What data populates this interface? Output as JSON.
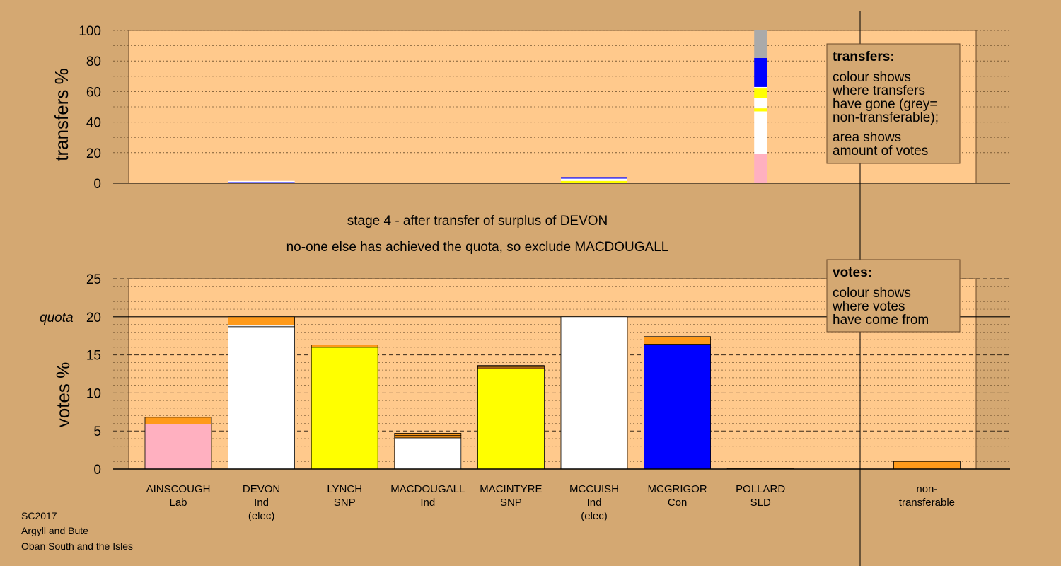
{
  "stage_line_1": "stage 4 - after transfer of surplus of DEVON",
  "stage_line_2": "no-one else has achieved the quota, so exclude MACDOUGALL",
  "footer": [
    "SC2017",
    "Argyll and Bute",
    "Oban South and the Isles"
  ],
  "transfers_legend": {
    "title": "transfers:",
    "text1": [
      "colour shows",
      "where transfers",
      "have gone (grey=",
      "non-transferable);"
    ],
    "text2": [
      "area shows",
      "amount of votes"
    ]
  },
  "votes_legend": {
    "title": "votes:",
    "text": [
      "colour shows",
      "where votes",
      "have come from"
    ]
  },
  "colors": {
    "background": "#d4a872",
    "plot_area": "#ffc98c",
    "Lab": "#ffb0c0",
    "Ind": "#ffffff",
    "SNP": "#ffff00",
    "Con": "#0000ff",
    "transfer": "#ff9a1a",
    "non_transferable": "#aaaaaa"
  },
  "chart_data": [
    {
      "type": "bar",
      "ylabel": "transfers %",
      "ylim": [
        0,
        100
      ],
      "yticks": [
        0,
        20,
        40,
        60,
        80,
        100
      ],
      "grid": true,
      "bars": [
        {
          "position": 1,
          "total": 1.5,
          "segments": [
            {
              "color": "#0000ff",
              "value": 0.7
            },
            {
              "color": "#ffffff",
              "value": 0.8
            }
          ]
        },
        {
          "position": 5,
          "total": 4,
          "segments": [
            {
              "color": "#ffff00",
              "value": 1.5
            },
            {
              "color": "#ffffff",
              "value": 1.5
            },
            {
              "color": "#0000ff",
              "value": 1.0
            }
          ]
        },
        {
          "position": 7,
          "total": 100,
          "narrow": true,
          "segments": [
            {
              "color": "#ffb0c0",
              "value": 19
            },
            {
              "color": "#ffffff",
              "value": 28
            },
            {
              "color": "#ffff00",
              "value": 2
            },
            {
              "color": "#ffffff",
              "value": 7
            },
            {
              "color": "#ffff00",
              "value": 6
            },
            {
              "color": "#ffffff",
              "value": 1
            },
            {
              "color": "#0000ff",
              "value": 19
            },
            {
              "color": "#aaaaaa",
              "value": 18
            }
          ]
        }
      ]
    },
    {
      "type": "bar",
      "ylabel": "votes %",
      "ylim": [
        0,
        25
      ],
      "yticks": [
        0,
        5,
        10,
        15,
        20,
        25
      ],
      "quota": 20,
      "quota_label": "quota",
      "grid": true,
      "categories": [
        {
          "name": "AINSCOUGH",
          "party": "Lab",
          "extra": ""
        },
        {
          "name": "DEVON",
          "party": "Ind",
          "extra": "(elec)"
        },
        {
          "name": "LYNCH",
          "party": "SNP",
          "extra": ""
        },
        {
          "name": "MACDOUGALL",
          "party": "Ind",
          "extra": ""
        },
        {
          "name": "MACINTYRE",
          "party": "SNP",
          "extra": ""
        },
        {
          "name": "MCCUISH",
          "party": "Ind",
          "extra": "(elec)"
        },
        {
          "name": "MCGRIGOR",
          "party": "Con",
          "extra": ""
        },
        {
          "name": "POLLARD",
          "party": "SLD",
          "extra": ""
        },
        {
          "name": "non-",
          "party": "transferable",
          "extra": ""
        }
      ],
      "bars": [
        {
          "position": 0,
          "segments": [
            {
              "color": "#ffb0c0",
              "value": 5.9
            },
            {
              "color": "#ff9a1a",
              "value": 0.9
            }
          ]
        },
        {
          "position": 1,
          "segments": [
            {
              "color": "#ffffff",
              "value": 18.7
            },
            {
              "color": "#ffffff",
              "value": 0.2
            },
            {
              "color": "#ff9a1a",
              "value": 1.1
            }
          ]
        },
        {
          "position": 2,
          "segments": [
            {
              "color": "#ffff00",
              "value": 16.0
            },
            {
              "color": "#ff9a1a",
              "value": 0.3
            }
          ]
        },
        {
          "position": 3,
          "segments": [
            {
              "color": "#ffffff",
              "value": 4.1
            },
            {
              "color": "#ff9a1a",
              "value": 0.3
            },
            {
              "color": "#ff9a1a",
              "value": 0.3
            }
          ]
        },
        {
          "position": 4,
          "segments": [
            {
              "color": "#ffff00",
              "value": 13.2
            },
            {
              "color": "#ff9a1a",
              "value": 0.2
            },
            {
              "color": "#ff9a1a",
              "value": 0.2
            }
          ]
        },
        {
          "position": 5,
          "segments": [
            {
              "color": "#ffffff",
              "value": 20.0
            }
          ]
        },
        {
          "position": 6,
          "segments": [
            {
              "color": "#0000ff",
              "value": 16.4
            },
            {
              "color": "#ff9a1a",
              "value": 1.0
            }
          ]
        },
        {
          "position": 7,
          "segments": [
            {
              "color": "#ff9a1a",
              "value": 0.1
            }
          ]
        },
        {
          "position": 9,
          "segments": [
            {
              "color": "#ff9a1a",
              "value": 1.0
            }
          ]
        }
      ]
    }
  ]
}
